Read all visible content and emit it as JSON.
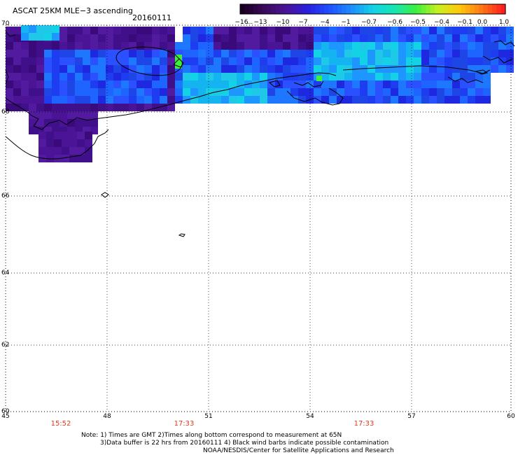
{
  "header": {
    "title": "ASCAT 25KM MLE−3 ascending",
    "date": "20160111"
  },
  "colorbar": {
    "labels": [
      "−16",
      "−13",
      "−10",
      "−7",
      "−4",
      "−1",
      "−0.7",
      "−0.6",
      "−0.5",
      "−0.4",
      "−0.1",
      "0.0",
      "1.0"
    ],
    "ellipsis": "..."
  },
  "axes": {
    "lat_labels": [
      "70",
      "68",
      "66",
      "64",
      "62",
      "60"
    ],
    "lon_labels": [
      "45",
      "48",
      "51",
      "54",
      "57",
      "60"
    ]
  },
  "times": [
    "15:52",
    "17:33",
    "17:33"
  ],
  "notes": [
    "Note: 1) Times are GMT 2)Times along bottom correspond to measurement at 65N",
    "3)Data buffer is 22 hrs from 20160111 4) Black wind barbs indicate possible contamination",
    "NOAA/NESDIS/Center for Satellite Applications and Research"
  ],
  "colors": {
    "scale": [
      "#1a0020",
      "#3a0a5a",
      "#4b1496",
      "#2a1ee0",
      "#1e50ff",
      "#1e8cff",
      "#14d2e6",
      "#14e6b4",
      "#3cf03c",
      "#c8f01e",
      "#ffc80a",
      "#ff7814",
      "#ff1e1e"
    ],
    "time_text": "#e23a1c"
  }
}
